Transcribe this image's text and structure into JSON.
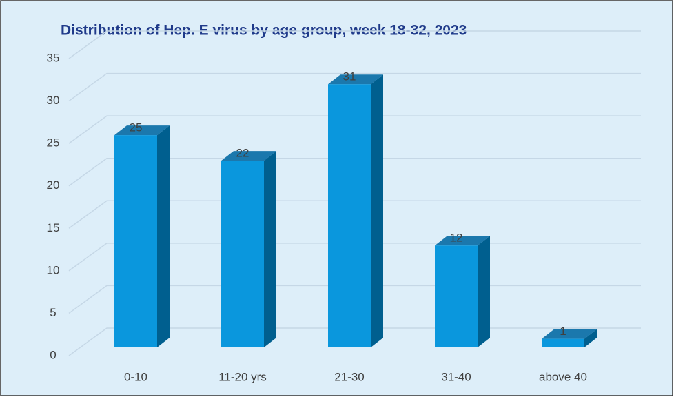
{
  "chart_data": {
    "type": "bar",
    "title": "Distribution of Hep. E virus by age group, week 18-32, 2023",
    "categories": [
      "0-10",
      "11-20 yrs",
      "21-30",
      "31-40",
      "above 40"
    ],
    "values": [
      25,
      22,
      31,
      12,
      1
    ],
    "color": "#0a97dd",
    "ylim": [
      0,
      35
    ],
    "yticks": [
      0,
      5,
      10,
      15,
      20,
      25,
      30,
      35
    ],
    "grid": true
  }
}
